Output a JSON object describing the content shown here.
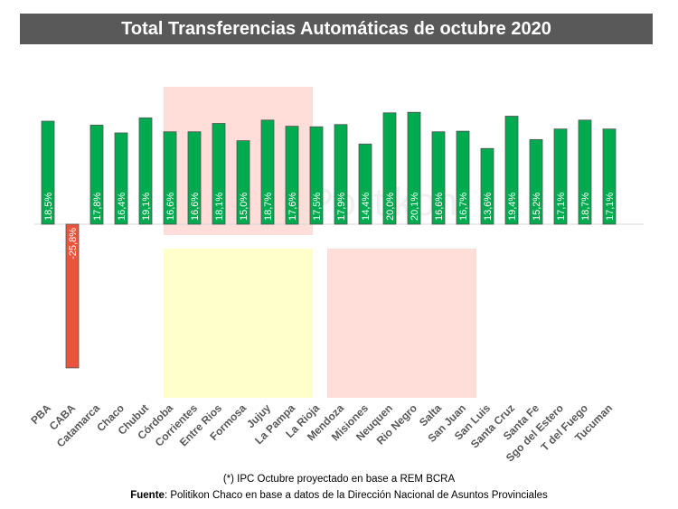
{
  "chart_data": {
    "type": "bar",
    "title": "Total Transferencias Automáticas de octubre 2020",
    "categories": [
      "PBA",
      "CABA",
      "Catamarca",
      "Chaco",
      "Chubut",
      "Córdoba",
      "Corrientes",
      "Entre Rios",
      "Formosa",
      "Jujuy",
      "La Pampa",
      "La Rioja",
      "Mendoza",
      "Misiones",
      "Neuquen",
      "Rio Negro",
      "Salta",
      "San Juan",
      "San Luis",
      "Santa Cruz",
      "Santa Fe",
      "Sgo del Estero",
      "T del Fuego",
      "Tucuman"
    ],
    "values": [
      18.5,
      -25.8,
      17.8,
      16.4,
      19.1,
      16.6,
      16.6,
      18.1,
      15.0,
      18.7,
      17.6,
      17.5,
      17.9,
      14.4,
      20.0,
      20.1,
      16.6,
      16.7,
      13.6,
      19.4,
      15.2,
      17.1,
      18.7,
      17.1
    ],
    "data_labels": [
      "18,5%",
      "-25,8%",
      "17,8%",
      "16,4%",
      "19,1%",
      "16,6%",
      "16,6%",
      "18,1%",
      "15,0%",
      "18,7%",
      "17,6%",
      "17,5%",
      "17,9%",
      "14,4%",
      "20,0%",
      "20,1%",
      "16,6%",
      "16,7%",
      "13,6%",
      "19,4%",
      "15,2%",
      "17,1%",
      "18,7%",
      "17,1%"
    ],
    "xlabel": "",
    "ylabel": "",
    "grid": false,
    "colors": {
      "positive": "#00AA4F",
      "negative": "#E8553A",
      "title_bg": "#595959",
      "highlight_pink": "#FFDDD9",
      "highlight_yellow": "#FFFFCC"
    },
    "watermark": "Politikon"
  },
  "footer": {
    "note_prefix": "(*)",
    "note_text": " IPC Octubre proyectado en base a REM BCRA",
    "source_label": "Fuente",
    "source_text": ": Politikon Chaco en base a datos de la Dirección Nacional de Asuntos Provinciales"
  }
}
